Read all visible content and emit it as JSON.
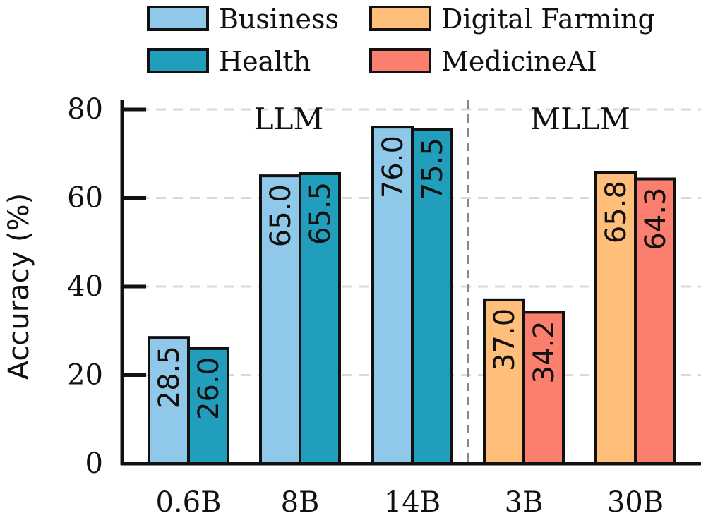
{
  "chart_data": {
    "type": "bar",
    "ylabel": "Accuracy (%)",
    "ylim": [
      0,
      80
    ],
    "yticks": [
      0,
      20,
      40,
      60,
      80
    ],
    "grid": true,
    "legend_position": "top",
    "categories": [
      "0.6B",
      "8B",
      "14B",
      "3B",
      "30B"
    ],
    "group_labels": [
      "LLM",
      "MLLM"
    ],
    "series": [
      {
        "name": "Business",
        "color": "#8fc8e8",
        "values": [
          28.5,
          65.0,
          76.0,
          null,
          null
        ],
        "labels": [
          "28.5",
          "65.0",
          "76.0",
          null,
          null
        ]
      },
      {
        "name": "Health",
        "color": "#219ebc",
        "values": [
          26.0,
          65.5,
          75.5,
          null,
          null
        ],
        "labels": [
          "26.0",
          "65.5",
          "75.5",
          null,
          null
        ]
      },
      {
        "name": "Digital Farming",
        "color": "#ffbe7a",
        "values": [
          null,
          null,
          null,
          37.0,
          65.8
        ],
        "labels": [
          null,
          null,
          null,
          "37.0",
          "65.8"
        ]
      },
      {
        "name": "MedicineAI",
        "color": "#fa7f6f",
        "values": [
          null,
          null,
          null,
          34.2,
          64.3
        ],
        "labels": [
          null,
          null,
          null,
          "34.2",
          "64.3"
        ]
      }
    ]
  }
}
